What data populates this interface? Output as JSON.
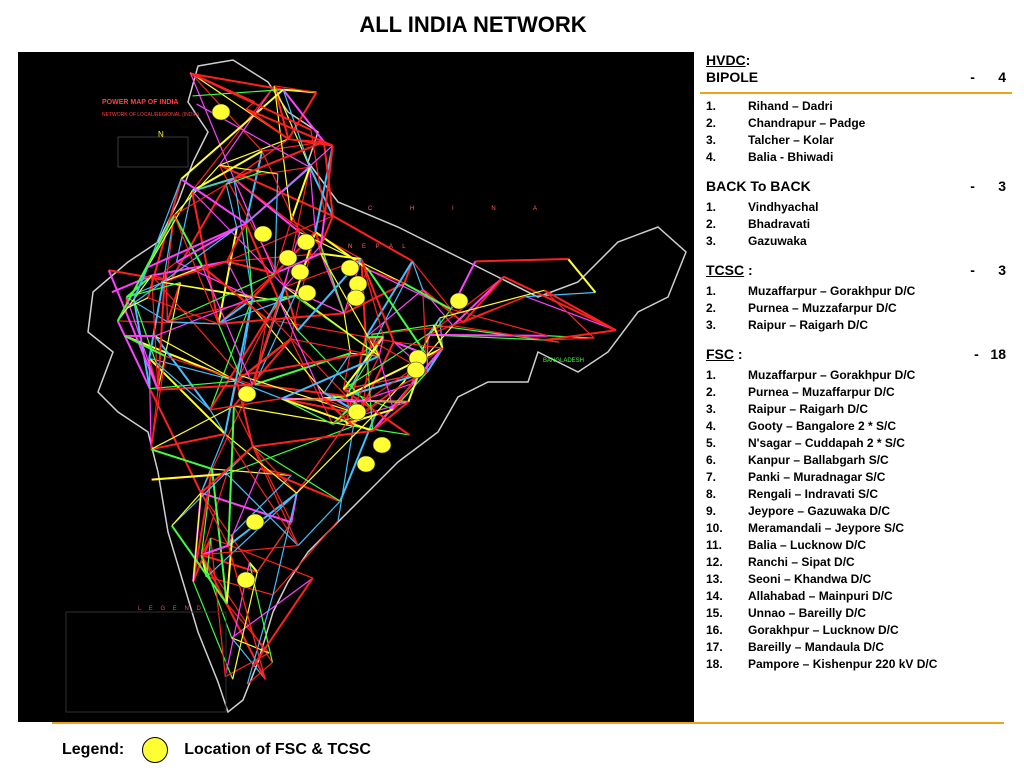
{
  "title": "ALL INDIA NETWORK",
  "map": {
    "background": "#000000",
    "marker_color": "#ffff33",
    "inset_title": "POWER MAP OF INDIA",
    "inset_subtitle": "NETWORK OF LOCAL/REGIONAL (INDIA)",
    "china_label": "C H I N A",
    "nepal_label": "N E P A L",
    "bangladesh_label": "BANGLADESH",
    "legend_heading": "L E G E N D",
    "north_label": "N",
    "marker_count": 18
  },
  "sections": [
    {
      "head_prefix": "",
      "head_underlined": "HVDC",
      "head_suffix": ":",
      "count": "",
      "sub_label": "BIPOLE",
      "sub_count": "-      4",
      "items": [
        {
          "num": "1.",
          "text": "Rihand – Dadri"
        },
        {
          "num": "2.",
          "text": "Chandrapur – Padge"
        },
        {
          "num": "3.",
          "text": "Talcher – Kolar"
        },
        {
          "num": "4.",
          "text": "Balia - Bhiwadi"
        }
      ]
    },
    {
      "head_plain": "BACK To BACK",
      "count": "-      3",
      "items": [
        {
          "num": "1.",
          "text": "Vindhyachal"
        },
        {
          "num": "2.",
          "text": "Bhadravati"
        },
        {
          "num": "3.",
          "text": "Gazuwaka"
        }
      ]
    },
    {
      "head_underlined": "TCSC",
      "head_suffix": " :",
      "count": "-      3",
      "items": [
        {
          "num": "1.",
          "text": "Muzaffarpur – Gorakhpur D/C"
        },
        {
          "num": "2.",
          "text": "Purnea – Muzzafarpur D/C"
        },
        {
          "num": "3.",
          "text": "Raipur – Raigarh D/C"
        }
      ]
    },
    {
      "head_underlined": "FSC",
      "head_suffix": " :",
      "count": "-   18",
      "items": [
        {
          "num": "1.",
          "text": "Muzaffarpur – Gorakhpur D/C"
        },
        {
          "num": "2.",
          "text": "Purnea – Muzaffarpur D/C"
        },
        {
          "num": "3.",
          "text": "Raipur – Raigarh D/C"
        },
        {
          "num": "4.",
          "text": "Gooty – Bangalore 2 * S/C"
        },
        {
          "num": "5.",
          "text": "N'sagar – Cuddapah 2 * S/C"
        },
        {
          "num": "6.",
          "text": "Kanpur – Ballabgarh S/C"
        },
        {
          "num": "7.",
          "text": "Panki – Muradnagar S/C"
        },
        {
          "num": "8.",
          "text": "Rengali – Indravati S/C"
        },
        {
          "num": "9.",
          "text": "Jeypore – Gazuwaka D/C"
        },
        {
          "num": "10.",
          "text": "Meramandali – Jeypore S/C"
        },
        {
          "num": "11.",
          "text": "Balia – Lucknow D/C"
        },
        {
          "num": "12.",
          "text": "Ranchi – Sipat D/C"
        },
        {
          "num": "13.",
          "text": "Seoni – Khandwa D/C"
        },
        {
          "num": "14.",
          "text": "Allahabad – Mainpuri D/C"
        },
        {
          "num": "15.",
          "text": "Unnao – Bareilly D/C"
        },
        {
          "num": "16.",
          "text": "Gorakhpur – Lucknow D/C"
        },
        {
          "num": "17.",
          "text": "Bareilly – Mandaula D/C"
        },
        {
          "num": "18.",
          "text": "Pampore – Kishenpur 220 kV D/C"
        }
      ]
    }
  ],
  "legend": {
    "label": "Legend:",
    "description": "Location of FSC & TCSC"
  }
}
